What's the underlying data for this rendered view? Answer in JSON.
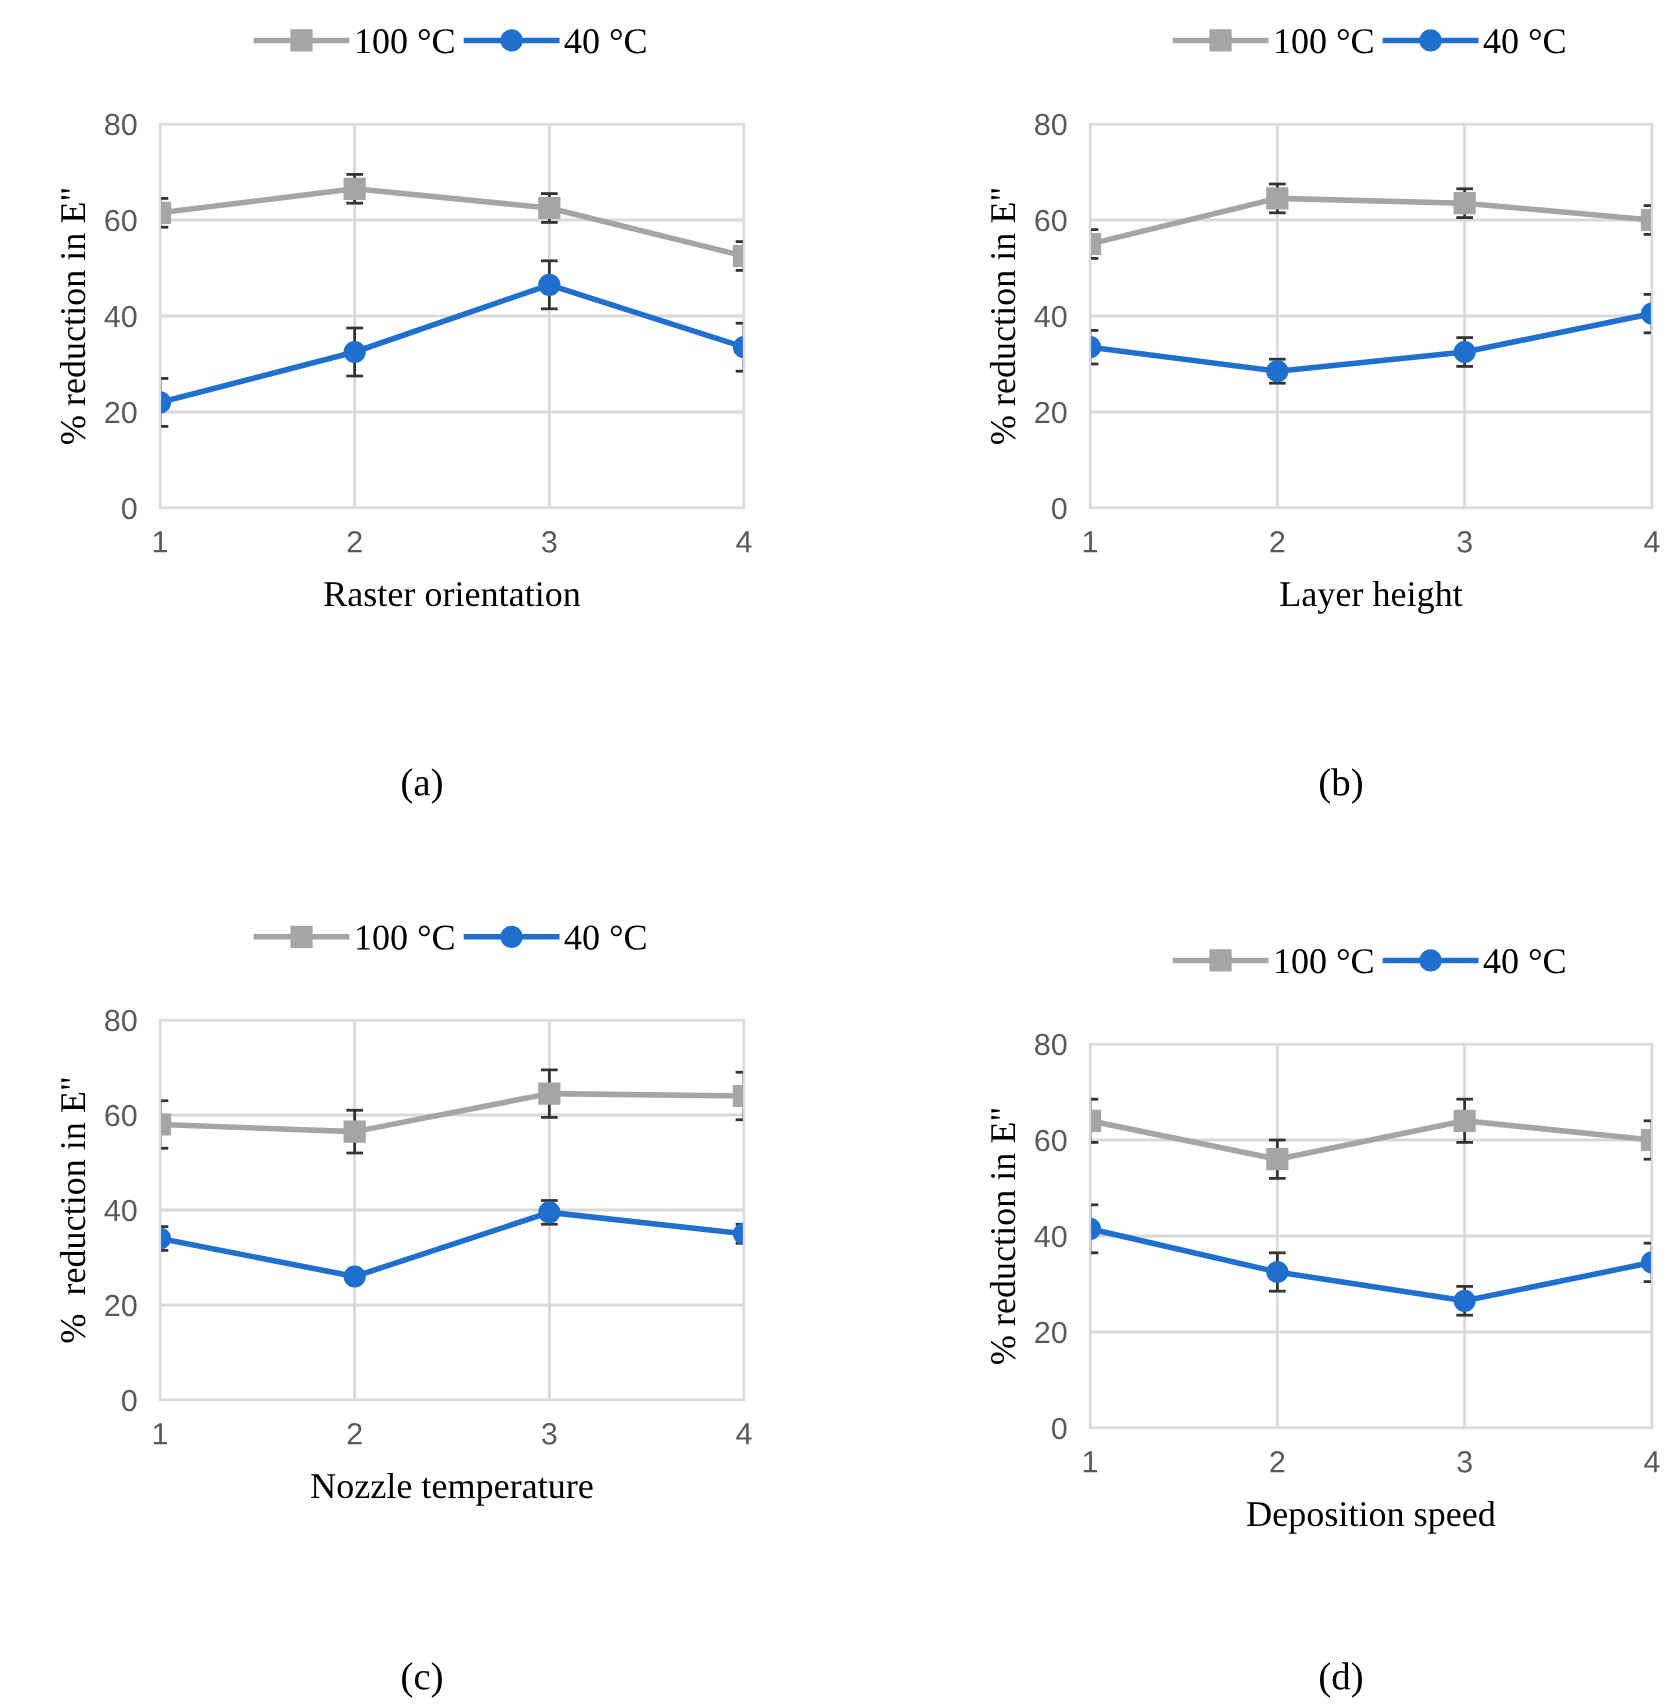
{
  "chart_data": [
    {
      "type": "line",
      "xlabel": "Raster orientation",
      "ylabel": "% reduction in E\"",
      "x": [
        1,
        2,
        3,
        4
      ],
      "xlim": [
        1,
        4
      ],
      "xticks": [
        1,
        2,
        3,
        4
      ],
      "ylim": [
        0,
        80
      ],
      "yticks": [
        0,
        20,
        40,
        60,
        80
      ],
      "grid": true,
      "legend": "top",
      "annotations": [
        "(a)"
      ],
      "series": [
        {
          "name": "100 °C",
          "color": "#a5a5a5",
          "marker": "square",
          "values": [
            61.5,
            66.5,
            62.5,
            52.5
          ],
          "errors": [
            3,
            3,
            3,
            3
          ]
        },
        {
          "name": "40 °C",
          "color": "#1f6fce",
          "marker": "circle",
          "values": [
            22,
            32.5,
            46.5,
            33.5
          ],
          "errors": [
            5,
            5,
            5,
            5
          ]
        }
      ]
    },
    {
      "type": "line",
      "xlabel": "Layer height",
      "ylabel": "% reduction in E\"",
      "x": [
        1,
        2,
        3,
        4
      ],
      "xlim": [
        1,
        4
      ],
      "xticks": [
        1,
        2,
        3,
        4
      ],
      "ylim": [
        0,
        80
      ],
      "yticks": [
        0,
        20,
        40,
        60,
        80
      ],
      "grid": true,
      "legend": "top",
      "annotations": [
        "(b)"
      ],
      "series": [
        {
          "name": "100 °C",
          "color": "#a5a5a5",
          "marker": "square",
          "values": [
            55,
            64.5,
            63.5,
            60
          ],
          "errors": [
            3,
            3,
            3,
            3
          ]
        },
        {
          "name": "40 °C",
          "color": "#1f6fce",
          "marker": "circle",
          "values": [
            33.5,
            28.5,
            32.5,
            40.5
          ],
          "errors": [
            3.5,
            2.5,
            3,
            4
          ]
        }
      ]
    },
    {
      "type": "line",
      "xlabel": "Nozzle temperature",
      "ylabel": "%  reduction in E\"",
      "x": [
        1,
        2,
        3,
        4
      ],
      "xlim": [
        1,
        4
      ],
      "xticks": [
        1,
        2,
        3,
        4
      ],
      "ylim": [
        0,
        80
      ],
      "yticks": [
        0,
        20,
        40,
        60,
        80
      ],
      "grid": true,
      "legend": "top",
      "annotations": [
        "(c)"
      ],
      "series": [
        {
          "name": "100 °C",
          "color": "#a5a5a5",
          "marker": "square",
          "values": [
            58,
            56.5,
            64.5,
            64
          ],
          "errors": [
            5,
            4.5,
            5,
            5
          ]
        },
        {
          "name": "40 °C",
          "color": "#1f6fce",
          "marker": "circle",
          "values": [
            34,
            26,
            39.5,
            35
          ],
          "errors": [
            2.5,
            null,
            2.5,
            2
          ]
        }
      ]
    },
    {
      "type": "line",
      "xlabel": "Deposition speed",
      "ylabel": "% reduction in E\"",
      "x": [
        1,
        2,
        3,
        4
      ],
      "xlim": [
        1,
        4
      ],
      "xticks": [
        1,
        2,
        3,
        4
      ],
      "ylim": [
        0,
        80
      ],
      "yticks": [
        0,
        20,
        40,
        60,
        80
      ],
      "grid": true,
      "legend": "top",
      "annotations": [
        "(d)"
      ],
      "series": [
        {
          "name": "100 °C",
          "color": "#a5a5a5",
          "marker": "square",
          "values": [
            64,
            56,
            64,
            60
          ],
          "errors": [
            4.5,
            4,
            4.5,
            4
          ]
        },
        {
          "name": "40 °C",
          "color": "#1f6fce",
          "marker": "circle",
          "values": [
            41.5,
            32.5,
            26.5,
            34.5
          ],
          "errors": [
            5,
            4,
            3,
            4
          ]
        }
      ]
    }
  ]
}
